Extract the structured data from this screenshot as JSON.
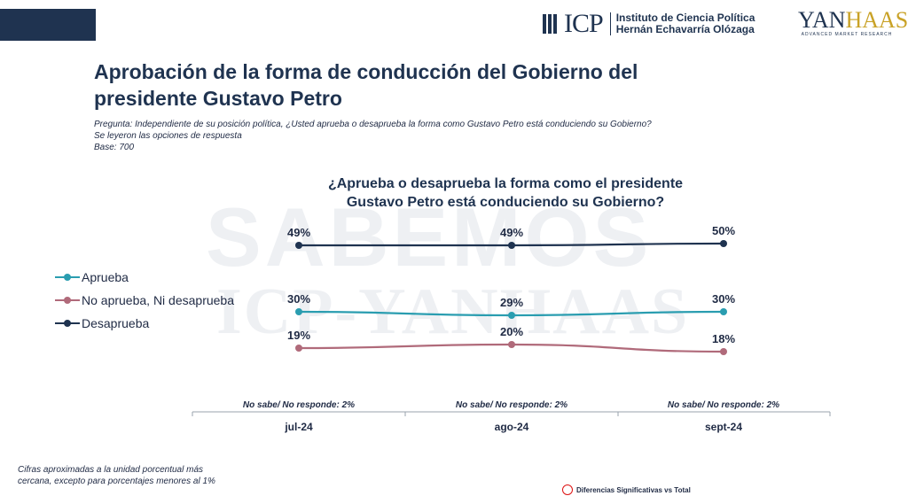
{
  "header": {
    "icp_mark": "ICP",
    "icp_name_line1": "Instituto de Ciencia Política",
    "icp_name_line2": "Hernán Echavarría Olózaga",
    "yanhaas_mark_a": "YAN",
    "yanhaas_mark_b": "HAAS",
    "yanhaas_sub": "ADVANCED MARKET RESEARCH"
  },
  "title_line1": "Aprobación de la forma de conducción del Gobierno del",
  "title_line2": "presidente Gustavo Petro",
  "question_line1": "Pregunta: Independiente de su posición política, ¿Usted aprueba o desaprueba la forma como Gustavo Petro está conduciendo su Gobierno?",
  "question_line2": "Se leyeron las opciones de respuesta",
  "question_line3": "Base: 700",
  "watermark_line1": "SABEMOS",
  "watermark_line2": "ICP-YANHAAS",
  "footnote_line1": "Cifras aproximadas a la unidad porcentual más",
  "footnote_line2": "cercana, excepto para porcentajes menores al 1%",
  "significance_label": "Diferencias Significativas vs Total",
  "colors": {
    "aprueba": "#2a9db0",
    "neutral": "#b06a7a",
    "desaprueba": "#1f3350"
  },
  "chart_data": {
    "type": "line",
    "title_line1": "¿Aprueba o desaprueba la forma como el presidente",
    "title_line2": "Gustavo Petro está conduciendo su Gobierno?",
    "categories": [
      "jul-24",
      "ago-24",
      "sept-24"
    ],
    "unit": "%",
    "series": [
      {
        "name": "Aprueba",
        "key": "aprueba",
        "values": [
          30,
          29,
          30
        ]
      },
      {
        "name": "No aprueba, Ni desaprueba",
        "key": "neutral",
        "values": [
          19,
          20,
          18
        ]
      },
      {
        "name": "Desaprueba",
        "key": "desaprueba",
        "values": [
          49,
          49,
          50
        ]
      }
    ],
    "no_response": [
      "No sabe/ No responde: 2%",
      "No sabe/ No responde: 2%",
      "No sabe/ No responde: 2%"
    ],
    "legend_position": "left",
    "grid": false
  }
}
